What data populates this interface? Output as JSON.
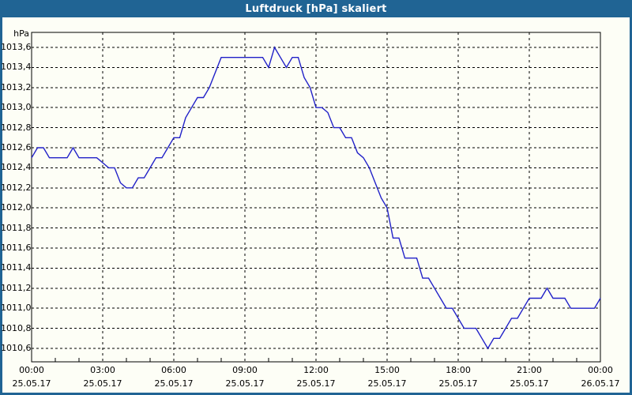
{
  "window": {
    "title": "Luftdruck [hPa] skaliert"
  },
  "colors": {
    "titlebar": "#206494",
    "window_border": "#206494",
    "background": "#fdfef6",
    "grid": "#000000",
    "frame": "#000000",
    "line": "#2121c8",
    "text": "#000000"
  },
  "chart_data": {
    "type": "line",
    "title": "Luftdruck [hPa] skaliert",
    "ylabel": "hPa",
    "xlabel": "",
    "legend": null,
    "grid": "dashed",
    "sample_interval_minutes": 15,
    "y_axis": {
      "min": 1010.6,
      "max": 1013.6,
      "step": 0.2,
      "tick_labels": [
        "1013,6",
        "1013,4",
        "1013,2",
        "1013,0",
        "1012,8",
        "1012,6",
        "1012,4",
        "1012,2",
        "1012,0",
        "1011,8",
        "1011,6",
        "1011,4",
        "1011,2",
        "1011,0",
        "1010,8",
        "1010,6"
      ]
    },
    "x_axis": {
      "major_interval": "3h",
      "minor_tick_interval": "1h",
      "ticks": [
        {
          "time": "00:00",
          "date": "25.05.17"
        },
        {
          "time": "03:00",
          "date": "25.05.17"
        },
        {
          "time": "06:00",
          "date": "25.05.17"
        },
        {
          "time": "09:00",
          "date": "25.05.17"
        },
        {
          "time": "12:00",
          "date": "25.05.17"
        },
        {
          "time": "15:00",
          "date": "25.05.17"
        },
        {
          "time": "18:00",
          "date": "25.05.17"
        },
        {
          "time": "21:00",
          "date": "25.05.17"
        },
        {
          "time": "00:00",
          "date": "26.05.17"
        }
      ]
    },
    "times": [
      "00:00",
      "00:15",
      "00:30",
      "00:45",
      "01:00",
      "01:15",
      "01:30",
      "01:45",
      "02:00",
      "02:15",
      "02:30",
      "02:45",
      "03:00",
      "03:15",
      "03:30",
      "03:45",
      "04:00",
      "04:15",
      "04:30",
      "04:45",
      "05:00",
      "05:15",
      "05:30",
      "05:45",
      "06:00",
      "06:15",
      "06:30",
      "06:45",
      "07:00",
      "07:15",
      "07:30",
      "07:45",
      "08:00",
      "08:15",
      "08:30",
      "08:45",
      "09:00",
      "09:15",
      "09:30",
      "09:45",
      "10:00",
      "10:15",
      "10:30",
      "10:45",
      "11:00",
      "11:15",
      "11:30",
      "11:45",
      "12:00",
      "12:15",
      "12:30",
      "12:45",
      "13:00",
      "13:15",
      "13:30",
      "13:45",
      "14:00",
      "14:15",
      "14:30",
      "14:45",
      "15:00",
      "15:15",
      "15:30",
      "15:45",
      "16:00",
      "16:15",
      "16:30",
      "16:45",
      "17:00",
      "17:15",
      "17:30",
      "17:45",
      "18:00",
      "18:15",
      "18:30",
      "18:45",
      "19:00",
      "19:15",
      "19:30",
      "19:45",
      "20:00",
      "20:15",
      "20:30",
      "20:45",
      "21:00",
      "21:15",
      "21:30",
      "21:45",
      "22:00",
      "22:15",
      "22:30",
      "22:45",
      "23:00",
      "23:15",
      "23:30",
      "23:45",
      "24:00"
    ],
    "values": [
      1012.5,
      1012.6,
      1012.6,
      1012.5,
      1012.5,
      1012.5,
      1012.5,
      1012.6,
      1012.5,
      1012.5,
      1012.5,
      1012.5,
      1012.45,
      1012.4,
      1012.4,
      1012.25,
      1012.2,
      1012.2,
      1012.3,
      1012.3,
      1012.4,
      1012.5,
      1012.5,
      1012.6,
      1012.7,
      1012.7,
      1012.9,
      1013.0,
      1013.1,
      1013.1,
      1013.2,
      1013.35,
      1013.5,
      1013.5,
      1013.5,
      1013.5,
      1013.5,
      1013.5,
      1013.5,
      1013.5,
      1013.4,
      1013.6,
      1013.5,
      1013.4,
      1013.5,
      1013.5,
      1013.3,
      1013.2,
      1013.0,
      1013.0,
      1012.95,
      1012.8,
      1012.8,
      1012.7,
      1012.7,
      1012.55,
      1012.5,
      1012.4,
      1012.25,
      1012.1,
      1012.0,
      1011.7,
      1011.7,
      1011.5,
      1011.5,
      1011.5,
      1011.3,
      1011.3,
      1011.2,
      1011.1,
      1011.0,
      1011.0,
      1010.9,
      1010.8,
      1010.8,
      1010.8,
      1010.7,
      1010.6,
      1010.7,
      1010.7,
      1010.8,
      1010.9,
      1010.9,
      1011.0,
      1011.1,
      1011.1,
      1011.1,
      1011.2,
      1011.1,
      1011.1,
      1011.1,
      1011.0,
      1011.0,
      1011.0,
      1011.0,
      1011.0,
      1011.1
    ]
  }
}
